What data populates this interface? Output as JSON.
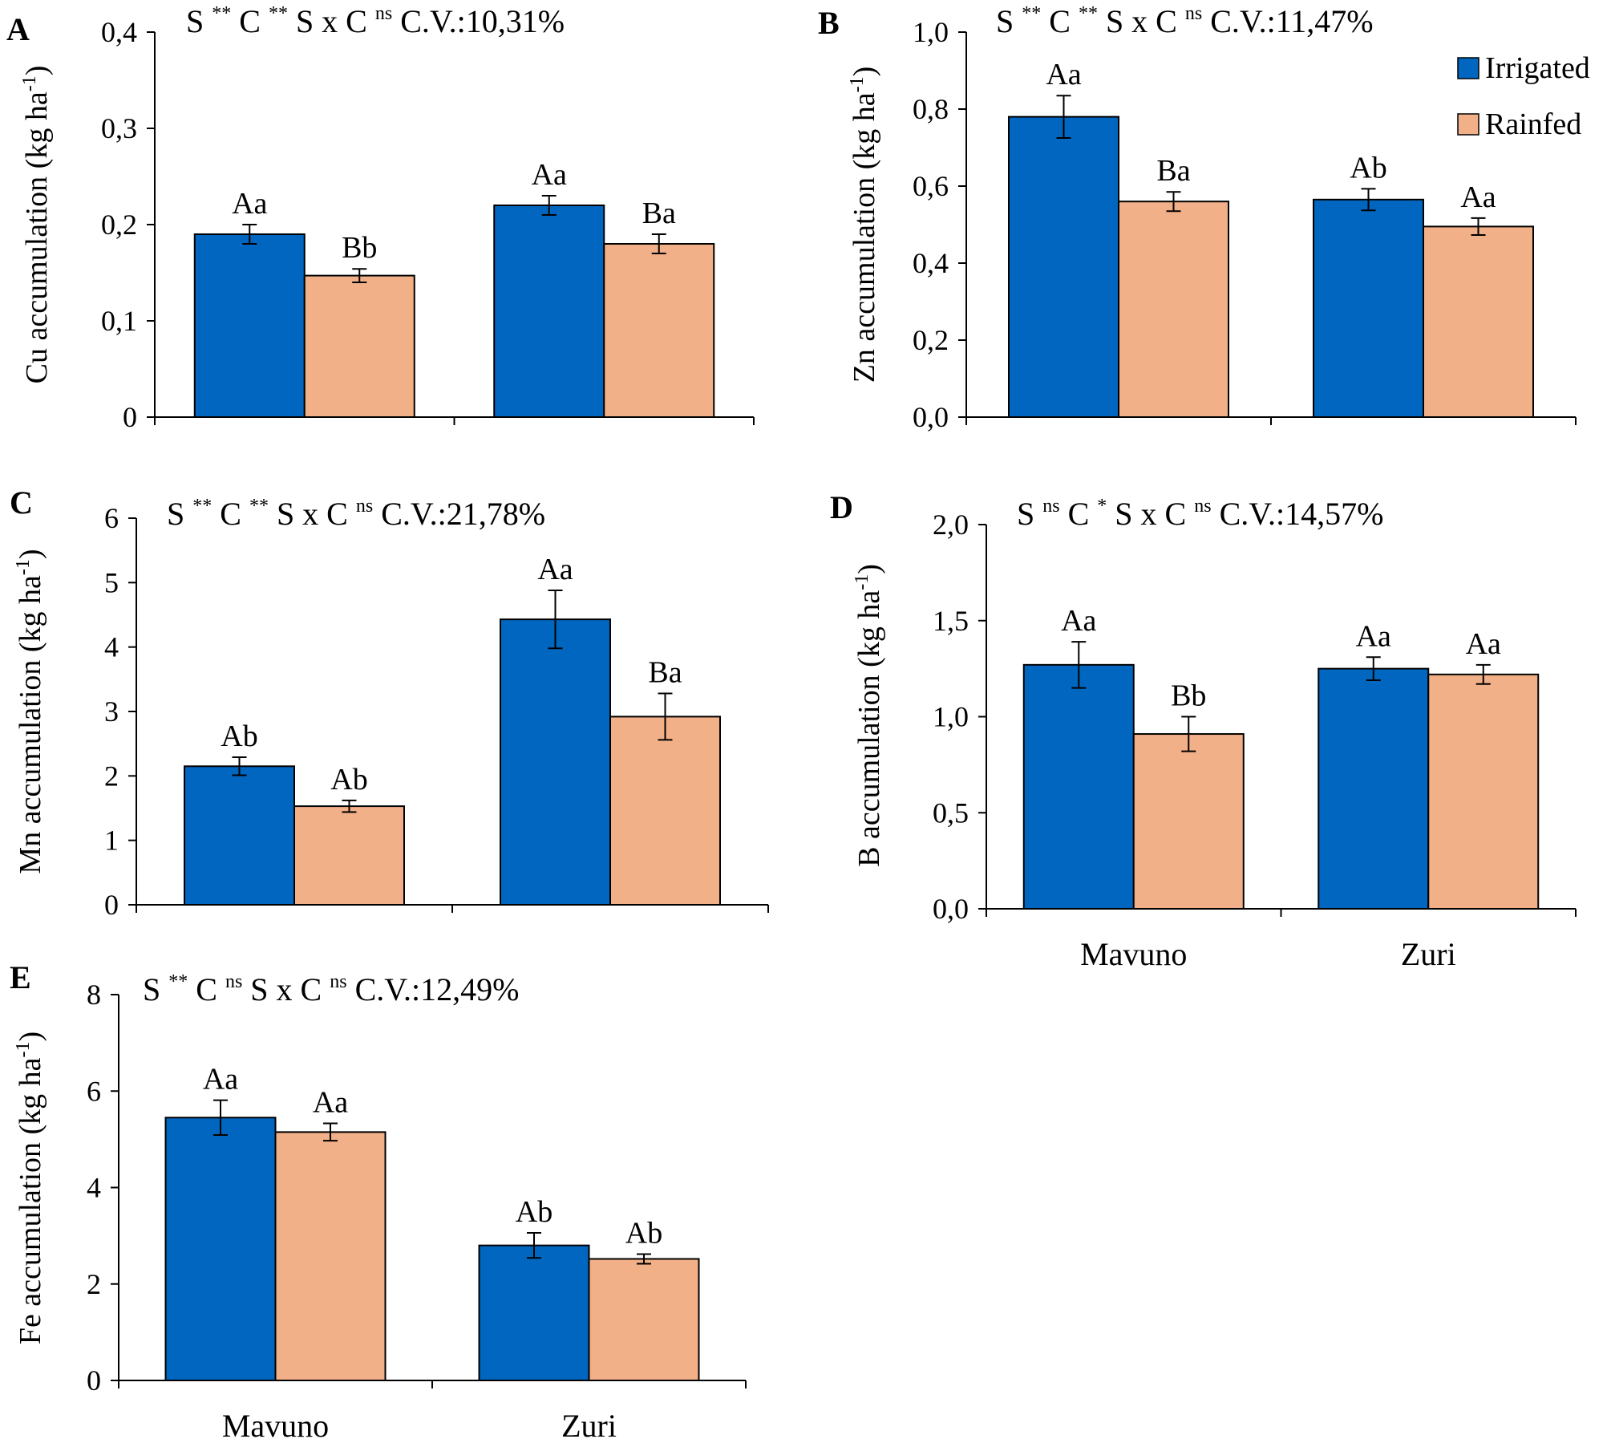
{
  "legend": [
    {
      "name": "Irrigated",
      "color": "#0066bf"
    },
    {
      "name": "Rainfed",
      "color": "#f2b088"
    }
  ],
  "chart_data": [
    {
      "panel": "A",
      "type": "bar",
      "categories": [
        "Mavuno",
        "Zuri"
      ],
      "series": [
        {
          "name": "Irrigated",
          "color": "#0066bf",
          "values": [
            0.19,
            0.22
          ],
          "errors": [
            0.01,
            0.01
          ],
          "letters": [
            "Aa",
            "Aa"
          ]
        },
        {
          "name": "Rainfed",
          "color": "#f2b088",
          "values": [
            0.147,
            0.18
          ],
          "errors": [
            0.007,
            0.01
          ],
          "letters": [
            "Bb",
            "Ba"
          ]
        }
      ],
      "ylabel_main": "Cu accumulation (kg ha",
      "ylabel_sup": "-1",
      "ylabel_end": ")",
      "ylim": [
        0,
        0.4
      ],
      "yticks": [
        0,
        0.1,
        0.2,
        0.3,
        0.4
      ],
      "ytick_labels": [
        "0",
        "0,1",
        "0,2",
        "0,3",
        "0,4"
      ],
      "stats": {
        "s": "S",
        "s_sig": "**",
        "c": "C",
        "c_sig": "**",
        "sxc": "S x C",
        "sxc_sig": "ns",
        "cv": "C.V.:10,31%"
      },
      "show_category_labels": false
    },
    {
      "panel": "B",
      "type": "bar",
      "categories": [
        "Mavuno",
        "Zuri"
      ],
      "series": [
        {
          "name": "Irrigated",
          "color": "#0066bf",
          "values": [
            0.78,
            0.565
          ],
          "errors": [
            0.055,
            0.028
          ],
          "letters": [
            "Aa",
            "Ab"
          ]
        },
        {
          "name": "Rainfed",
          "color": "#f2b088",
          "values": [
            0.56,
            0.495
          ],
          "errors": [
            0.025,
            0.022
          ],
          "letters": [
            "Ba",
            "Aa"
          ]
        }
      ],
      "ylabel_main": "Zn accumulation (kg ha",
      "ylabel_sup": "-1",
      "ylabel_end": ")",
      "ylim": [
        0,
        1.0
      ],
      "yticks": [
        0,
        0.2,
        0.4,
        0.6,
        0.8,
        1.0
      ],
      "ytick_labels": [
        "0,0",
        "0,2",
        "0,4",
        "0,6",
        "0,8",
        "1,0"
      ],
      "stats": {
        "s": "S",
        "s_sig": "**",
        "c": "C",
        "c_sig": "**",
        "sxc": "S x C",
        "sxc_sig": "ns",
        "cv": "C.V.:11,47%"
      },
      "show_category_labels": false,
      "show_legend": true
    },
    {
      "panel": "C",
      "type": "bar",
      "categories": [
        "Mavuno",
        "Zuri"
      ],
      "series": [
        {
          "name": "Irrigated",
          "color": "#0066bf",
          "values": [
            2.15,
            4.43
          ],
          "errors": [
            0.14,
            0.45
          ],
          "letters": [
            "Ab",
            "Aa"
          ]
        },
        {
          "name": "Rainfed",
          "color": "#f2b088",
          "values": [
            1.53,
            2.92
          ],
          "errors": [
            0.09,
            0.36
          ],
          "letters": [
            "Ab",
            "Ba"
          ]
        }
      ],
      "ylabel_main": "Mn accumulation (kg ha",
      "ylabel_sup": "-1",
      "ylabel_end": ")",
      "ylim": [
        0,
        6
      ],
      "yticks": [
        0,
        1,
        2,
        3,
        4,
        5,
        6
      ],
      "ytick_labels": [
        "0",
        "1",
        "2",
        "3",
        "4",
        "5",
        "6"
      ],
      "stats": {
        "s": "S",
        "s_sig": "**",
        "c": "C",
        "c_sig": "**",
        "sxc": "S x C",
        "sxc_sig": "ns",
        "cv": "C.V.:21,78%"
      },
      "show_category_labels": false
    },
    {
      "panel": "D",
      "type": "bar",
      "categories": [
        "Mavuno",
        "Zuri"
      ],
      "series": [
        {
          "name": "Irrigated",
          "color": "#0066bf",
          "values": [
            1.27,
            1.25
          ],
          "errors": [
            0.12,
            0.06
          ],
          "letters": [
            "Aa",
            "Aa"
          ]
        },
        {
          "name": "Rainfed",
          "color": "#f2b088",
          "values": [
            0.91,
            1.22
          ],
          "errors": [
            0.09,
            0.05
          ],
          "letters": [
            "Bb",
            "Aa"
          ]
        }
      ],
      "ylabel_main": "B accumulation (kg ha",
      "ylabel_sup": "-1",
      "ylabel_end": ")",
      "ylim": [
        0,
        2.0
      ],
      "yticks": [
        0,
        0.5,
        1.0,
        1.5,
        2.0
      ],
      "ytick_labels": [
        "0,0",
        "0,5",
        "1,0",
        "1,5",
        "2,0"
      ],
      "stats": {
        "s": "S",
        "s_sig": "ns",
        "c": "C",
        "c_sig": "*",
        "sxc": "S x C",
        "sxc_sig": "ns",
        "cv": "C.V.:14,57%"
      },
      "show_category_labels": true
    },
    {
      "panel": "E",
      "type": "bar",
      "categories": [
        "Mavuno",
        "Zuri"
      ],
      "series": [
        {
          "name": "Irrigated",
          "color": "#0066bf",
          "values": [
            5.45,
            2.8
          ],
          "errors": [
            0.36,
            0.26
          ],
          "letters": [
            "Aa",
            "Ab"
          ]
        },
        {
          "name": "Rainfed",
          "color": "#f2b088",
          "values": [
            5.15,
            2.52
          ],
          "errors": [
            0.18,
            0.1
          ],
          "letters": [
            "Aa",
            "Ab"
          ]
        }
      ],
      "ylabel_main": "Fe accumulation (kg ha",
      "ylabel_sup": "-1",
      "ylabel_end": ")",
      "ylim": [
        0,
        8
      ],
      "yticks": [
        0,
        2,
        4,
        6,
        8
      ],
      "ytick_labels": [
        "0",
        "2",
        "4",
        "6",
        "8"
      ],
      "stats": {
        "s": "S",
        "s_sig": "**",
        "c": "C",
        "c_sig": "ns",
        "sxc": "S x C",
        "sxc_sig": "ns",
        "cv": "C.V.:12,49%"
      },
      "show_category_labels": true
    }
  ]
}
